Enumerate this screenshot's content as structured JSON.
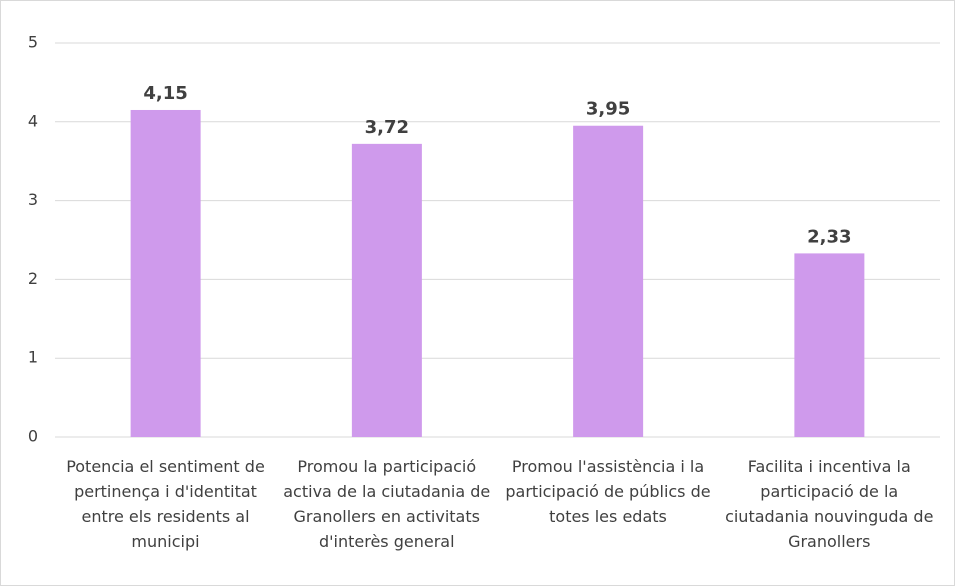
{
  "chart_data": {
    "type": "bar",
    "categories": [
      "Potencia el sentiment de pertinença i d'identitat entre els residents al municipi",
      "Promou la participació activa de la ciutadania de Granollers en activitats d'interès general",
      "Promou l'assistència i la participació de públics de totes les edats",
      "Facilita i incentiva la participació de la ciutadania nouvinguda de Granollers"
    ],
    "values": [
      4.15,
      3.72,
      3.95,
      2.33
    ],
    "value_labels": [
      "4,15",
      "3,72",
      "3,95",
      "2,33"
    ],
    "color": "#cf9aec",
    "ylim": [
      0,
      5
    ],
    "yticks": [
      0,
      1,
      2,
      3,
      4,
      5
    ],
    "grid": true
  }
}
